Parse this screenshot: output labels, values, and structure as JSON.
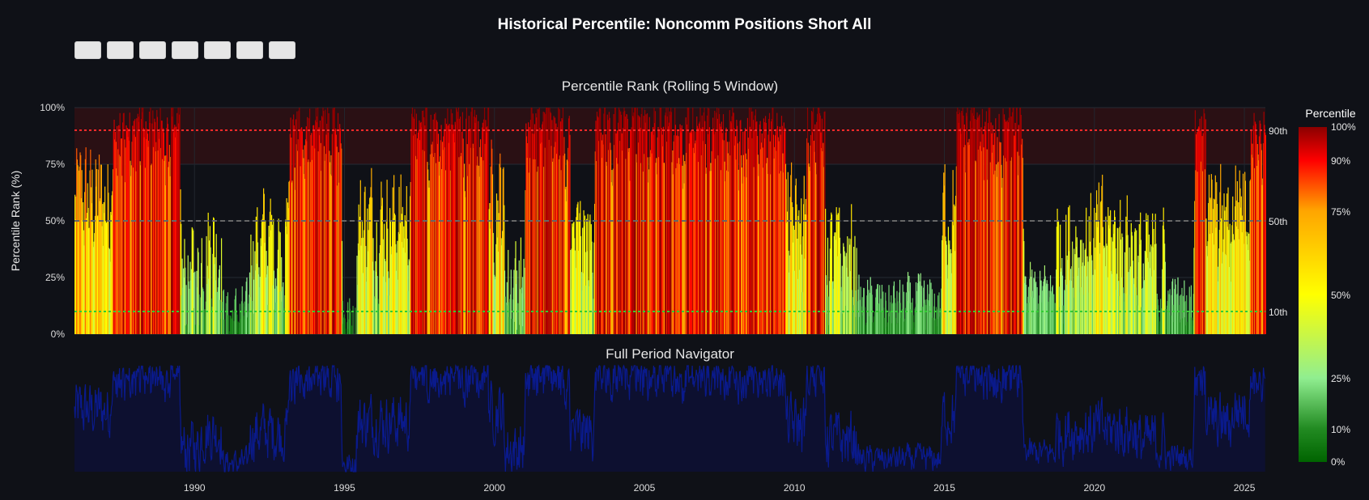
{
  "title": "Historical Percentile: Noncomm Positions Short All",
  "range_buttons": [
    "",
    "",
    "",
    "",
    "",
    "",
    ""
  ],
  "chart_data": [
    {
      "type": "bar",
      "title": "Percentile Rank (Rolling 5 Window)",
      "ylabel": "Percentile Rank (%)",
      "ylim": [
        0,
        100
      ],
      "y_ticks": [
        "0%",
        "25%",
        "50%",
        "75%",
        "100%"
      ],
      "x_range": [
        "1986-01",
        "2025-09"
      ],
      "x_ticks": [
        "1990",
        "1995",
        "2000",
        "2005",
        "2010",
        "2015",
        "2020",
        "2025"
      ],
      "reference_lines": [
        {
          "label": "90th",
          "value": 90,
          "color": "#ff2a2a",
          "style": "dotted"
        },
        {
          "label": "50th",
          "value": 50,
          "color": "#666666",
          "style": "dashed"
        },
        {
          "label": "10th",
          "value": 10,
          "color": "#33cc33",
          "style": "dotted"
        }
      ],
      "shaded_band": {
        "from": 75,
        "to": 100,
        "color": "#2a1014"
      },
      "colorbar": {
        "title": "Percentile",
        "ticks": [
          "0%",
          "10%",
          "25%",
          "50%",
          "75%",
          "90%",
          "100%"
        ],
        "tick_values": [
          0,
          10,
          25,
          50,
          75,
          90,
          100
        ],
        "colors": [
          "#006400",
          "#228b22",
          "#90ee90",
          "#ffff00",
          "#ffa500",
          "#ff0000",
          "#8b0000"
        ]
      },
      "regimes": [
        {
          "from": 1986.0,
          "to": 1987.2,
          "level": 58
        },
        {
          "from": 1987.2,
          "to": 1989.5,
          "level": 82
        },
        {
          "from": 1989.5,
          "to": 1990.2,
          "level": 22
        },
        {
          "from": 1990.2,
          "to": 1990.9,
          "level": 38
        },
        {
          "from": 1990.9,
          "to": 1991.8,
          "level": 8
        },
        {
          "from": 1991.8,
          "to": 1993.1,
          "level": 38
        },
        {
          "from": 1993.1,
          "to": 1994.9,
          "level": 80
        },
        {
          "from": 1994.9,
          "to": 1995.4,
          "level": 6
        },
        {
          "from": 1995.4,
          "to": 1997.2,
          "level": 48
        },
        {
          "from": 1997.2,
          "to": 1999.8,
          "level": 84
        },
        {
          "from": 1999.8,
          "to": 2000.3,
          "level": 58
        },
        {
          "from": 2000.3,
          "to": 2001.0,
          "level": 22
        },
        {
          "from": 2001.0,
          "to": 2002.5,
          "level": 82
        },
        {
          "from": 2002.5,
          "to": 2003.3,
          "level": 36
        },
        {
          "from": 2003.3,
          "to": 2009.7,
          "level": 86
        },
        {
          "from": 2009.7,
          "to": 2010.4,
          "level": 44
        },
        {
          "from": 2010.4,
          "to": 2011.0,
          "level": 90
        },
        {
          "from": 2011.0,
          "to": 2012.1,
          "level": 30
        },
        {
          "from": 2012.1,
          "to": 2014.9,
          "level": 12
        },
        {
          "from": 2014.9,
          "to": 2015.4,
          "level": 54
        },
        {
          "from": 2015.4,
          "to": 2017.6,
          "level": 86
        },
        {
          "from": 2017.6,
          "to": 2018.7,
          "level": 18
        },
        {
          "from": 2018.7,
          "to": 2019.2,
          "level": 38
        },
        {
          "from": 2019.2,
          "to": 2021.4,
          "level": 40
        },
        {
          "from": 2021.4,
          "to": 2022.4,
          "level": 28
        },
        {
          "from": 2022.4,
          "to": 2023.3,
          "level": 14
        },
        {
          "from": 2023.3,
          "to": 2023.7,
          "level": 78
        },
        {
          "from": 2023.7,
          "to": 2024.6,
          "level": 46
        },
        {
          "from": 2024.6,
          "to": 2025.2,
          "level": 60
        },
        {
          "from": 2025.2,
          "to": 2025.7,
          "level": 82
        }
      ]
    },
    {
      "type": "area",
      "title": "Full Period Navigator",
      "x_ticks": [
        "1990",
        "1995",
        "2000",
        "2005",
        "2010",
        "2015",
        "2020",
        "2025"
      ],
      "line_color": "#0a1a8c",
      "fill_color": "#0d1030"
    }
  ]
}
